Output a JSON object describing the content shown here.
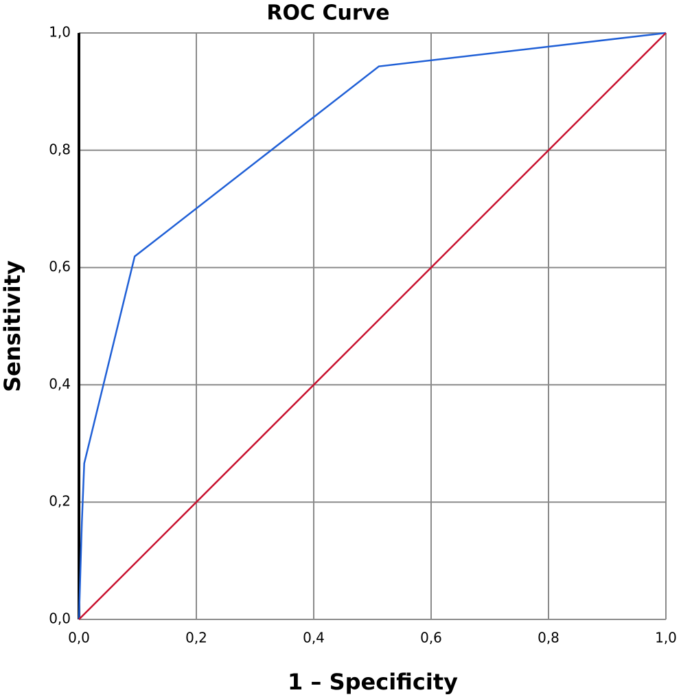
{
  "chart_data": {
    "type": "line",
    "title": "ROC Curve",
    "x_label": "1 – Specificity",
    "y_label": "Sensitivity",
    "xlim": [
      0,
      1
    ],
    "ylim": [
      0,
      1
    ],
    "xticks": [
      {
        "value": 0,
        "label": "0,0"
      },
      {
        "value": 0.2,
        "label": "0,2"
      },
      {
        "value": 0.4,
        "label": "0,4"
      },
      {
        "value": 0.6,
        "label": "0,6"
      },
      {
        "value": 0.8,
        "label": "0,8"
      },
      {
        "value": 1,
        "label": "1,0"
      }
    ],
    "yticks": [
      {
        "value": 0,
        "label": "0,0"
      },
      {
        "value": 0.2,
        "label": "0,2"
      },
      {
        "value": 0.4,
        "label": "0,4"
      },
      {
        "value": 0.6,
        "label": "0,6"
      },
      {
        "value": 0.8,
        "label": "0,8"
      },
      {
        "value": 1,
        "label": "1,0"
      }
    ],
    "grid": true,
    "series": [
      {
        "color": "#1f5fd6",
        "x": [
          0,
          0.005,
          0.009,
          0.095,
          0.511,
          1
        ],
        "values": [
          0,
          0.166,
          0.266,
          0.619,
          0.943,
          1
        ]
      },
      {
        "color": "#c8102e",
        "x": [
          0,
          1
        ],
        "values": [
          0,
          1
        ]
      }
    ]
  }
}
